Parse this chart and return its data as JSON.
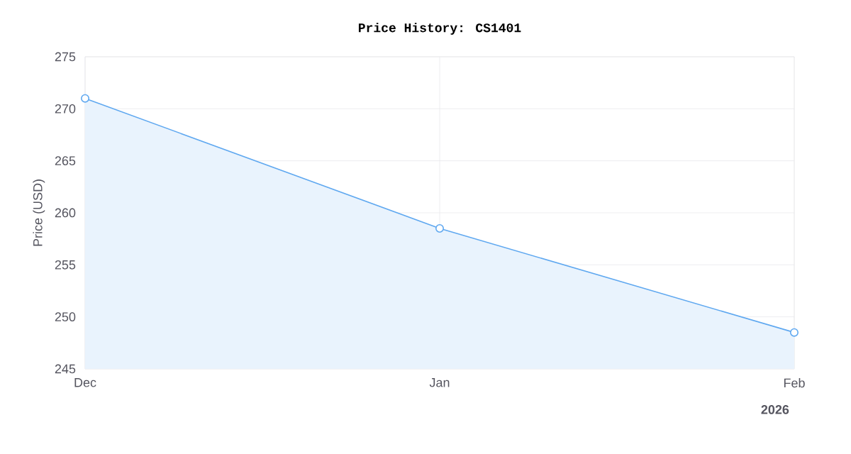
{
  "chart_data": {
    "type": "area",
    "title": "Price History: CS1401",
    "ylabel": "Price (USD)",
    "x": [
      "2025-12",
      "2026-01",
      "2026-02"
    ],
    "series": [
      {
        "color": "#5fa8f0",
        "values": [
          271,
          258.5,
          248.5
        ]
      }
    ],
    "xlim": [
      "2025-12",
      "2026-02"
    ],
    "xticks": [
      {
        "value": "2025-12",
        "label": "Dec"
      },
      {
        "value": "2026-01",
        "label": "Jan"
      },
      {
        "value": "2026-02",
        "label": "Feb"
      }
    ],
    "ylim": [
      245,
      275
    ],
    "yticks": [
      245,
      250,
      255,
      260,
      265,
      270,
      275
    ],
    "annotations": [
      "2026"
    ],
    "grid": true,
    "marker": "circle"
  }
}
